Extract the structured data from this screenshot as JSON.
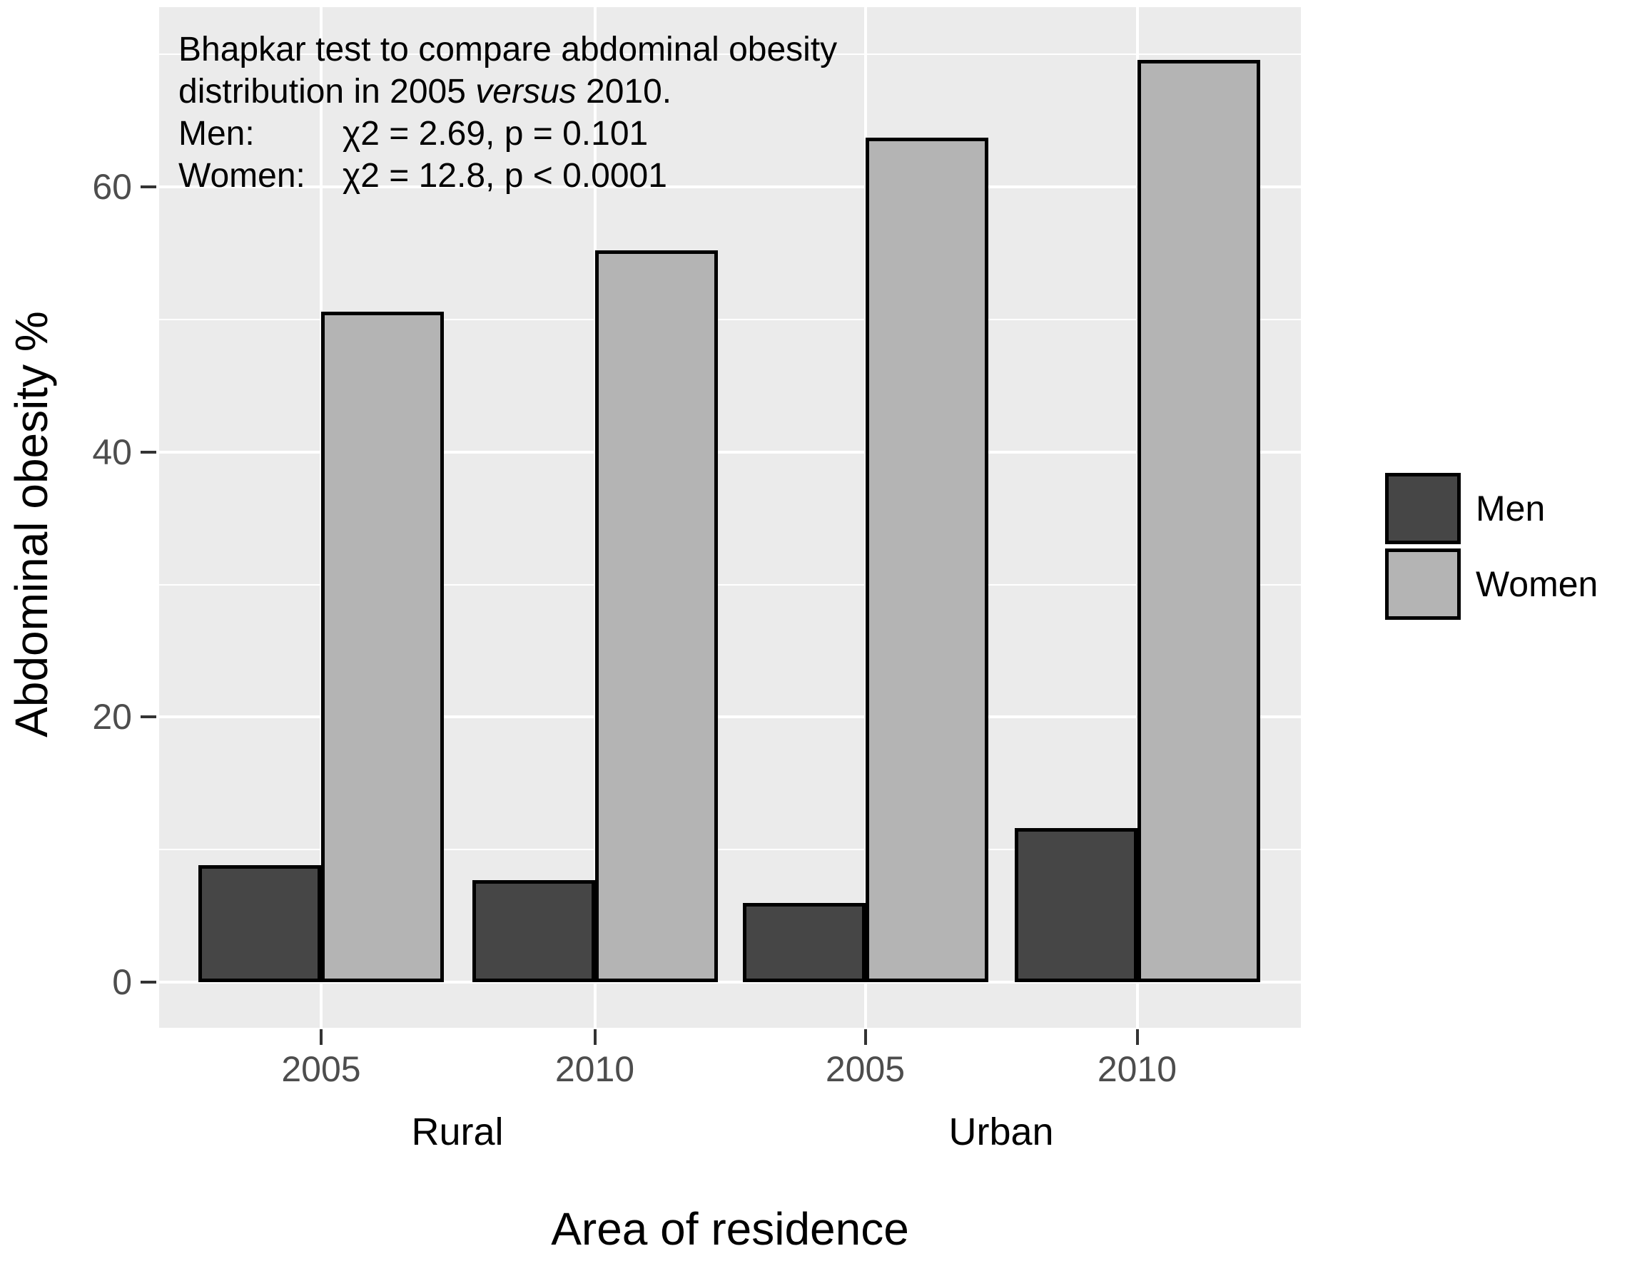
{
  "chart_data": {
    "type": "bar",
    "xlabel": "Area of residence",
    "ylabel": "Abdominal obesity %",
    "group_labels": [
      "Rural",
      "Urban"
    ],
    "x_tick_labels": [
      "2005",
      "2010",
      "2005",
      "2010"
    ],
    "series": [
      {
        "name": "Men",
        "color": "#464646",
        "values": [
          8.8,
          7.7,
          6.0,
          11.6
        ]
      },
      {
        "name": "Women",
        "color": "#B4B4B4",
        "values": [
          50.6,
          55.2,
          63.7,
          69.6
        ]
      }
    ],
    "ylim": [
      0,
      73
    ],
    "yticks": [
      0,
      20,
      40,
      60
    ],
    "yticks_minor": [
      10,
      30,
      50,
      70
    ],
    "grid": "white major and minor horizontal lines, white vertical lines at each x position, on grey panel",
    "legend_position": "right",
    "annotation": {
      "line1": "Bhapkar test to compare abdominal obesity",
      "line2_pre": "distribution in 2005 ",
      "line2_italic": "versus",
      "line2_post": " 2010.",
      "stats_rows": [
        {
          "label": "Men:",
          "value": "χ2 = 2.69, p = 0.101"
        },
        {
          "label": "Women:",
          "value": "χ2 = 12.8, p < 0.0001"
        }
      ]
    },
    "colors": {
      "panel_bg": "#EBEBEB",
      "grid": "#FFFFFF",
      "bar_outline": "#000000",
      "axis_tick_text": "#4D4D4D",
      "title_text": "#000000",
      "tick_mark": "#333333",
      "background": "#FFFFFF"
    }
  }
}
